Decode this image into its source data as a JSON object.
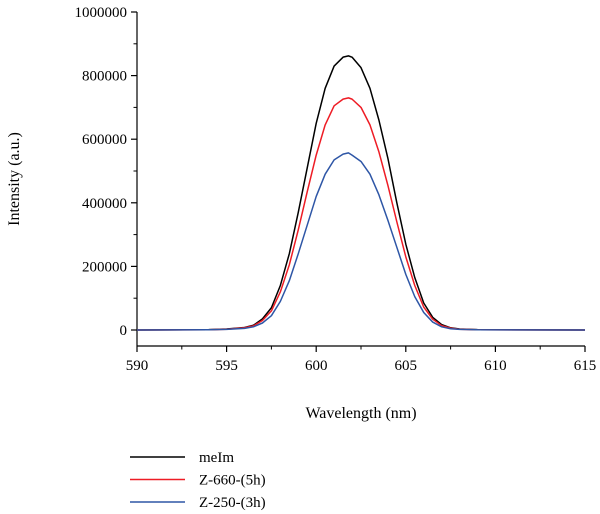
{
  "chart_data": {
    "type": "line",
    "xlabel": "Wavelength (nm)",
    "ylabel": "Intensity (a.u.)",
    "xlim": [
      590,
      615
    ],
    "ylim": [
      0,
      1000000
    ],
    "x_ticks": [
      "590",
      "595",
      "600",
      "605",
      "610",
      "615"
    ],
    "y_ticks": [
      "0",
      "200000",
      "400000",
      "600000",
      "800000",
      "1000000"
    ],
    "grid": false,
    "legend_position": "bottom-left",
    "x": [
      590,
      594,
      595,
      596,
      596.5,
      597,
      597.5,
      598,
      598.5,
      599,
      599.5,
      600,
      600.5,
      601,
      601.5,
      601.8,
      602,
      602.5,
      603,
      603.5,
      604,
      604.5,
      605,
      605.5,
      606,
      606.5,
      607,
      607.5,
      608,
      609,
      615
    ],
    "series": [
      {
        "name": "meIm",
        "color": "#000000",
        "values": [
          0,
          1000,
          3000,
          8000,
          15000,
          35000,
          70000,
          140000,
          240000,
          370000,
          510000,
          650000,
          760000,
          830000,
          858000,
          862000,
          858000,
          825000,
          760000,
          660000,
          540000,
          400000,
          270000,
          165000,
          85000,
          40000,
          17000,
          7000,
          3000,
          1000,
          0
        ]
      },
      {
        "name": "Z-660-(5h)",
        "color": "#ee1c25",
        "values": [
          0,
          900,
          2500,
          7000,
          13000,
          30000,
          60000,
          120000,
          205000,
          315000,
          435000,
          550000,
          645000,
          705000,
          726000,
          730000,
          726000,
          700000,
          645000,
          560000,
          455000,
          340000,
          230000,
          140000,
          72000,
          34000,
          14000,
          6000,
          2500,
          800,
          0
        ]
      },
      {
        "name": "Z-250-(3h)",
        "color": "#2e56a6",
        "values": [
          0,
          700,
          2000,
          5000,
          10000,
          22000,
          45000,
          90000,
          155000,
          240000,
          330000,
          420000,
          490000,
          535000,
          553000,
          557000,
          550000,
          530000,
          490000,
          425000,
          345000,
          260000,
          175000,
          105000,
          55000,
          25000,
          10000,
          4000,
          2000,
          600,
          0
        ]
      }
    ]
  }
}
